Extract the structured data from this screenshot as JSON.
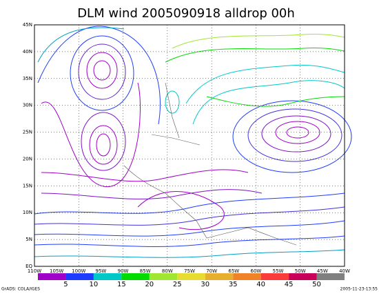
{
  "map": {
    "title": "DLM wind 2005090918 alldrop 00h",
    "lat_labels": [
      "EQ",
      "5N",
      "10N",
      "15N",
      "20N",
      "25N",
      "30N",
      "35N",
      "40N",
      "45N"
    ],
    "lon_labels": [
      "110W",
      "105W",
      "100W",
      "95W",
      "90W",
      "85W",
      "80W",
      "75W",
      "70W",
      "65W",
      "60W",
      "55W",
      "50W",
      "45W",
      "40W"
    ],
    "colorbar": {
      "colors": [
        "#a000c8",
        "#1e3cff",
        "#00c8c8",
        "#00dc00",
        "#a0e632",
        "#e6dc32",
        "#e6af2d",
        "#f08228",
        "#fa3c3c",
        "#c8005a",
        "#808080"
      ],
      "labels": [
        5,
        10,
        15,
        20,
        25,
        30,
        35,
        40,
        45,
        50
      ]
    },
    "footer_left": "GrADS: COLA/IGES",
    "footer_right": "2005-11-23-13:55"
  }
}
